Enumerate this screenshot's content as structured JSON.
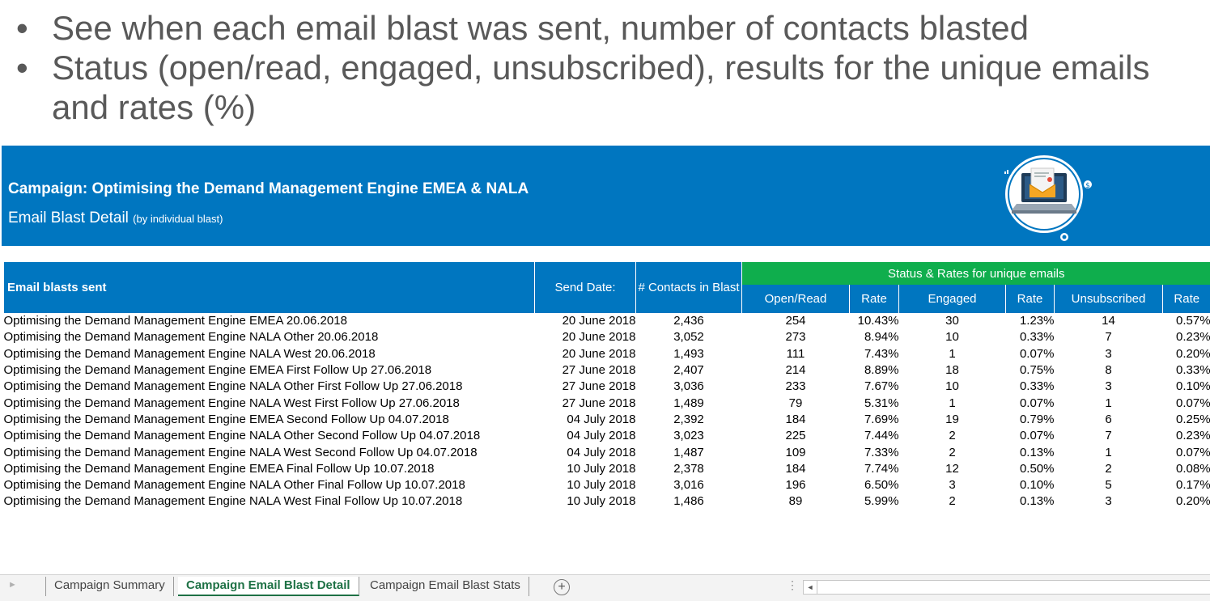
{
  "slide": {
    "bullets": [
      {
        "marker": "•",
        "text": "See when each email blast was sent, number of contacts blasted"
      },
      {
        "marker": "•",
        "text": "Status (open/read, engaged, unsubscribed), results for the unique emails and rates (%)"
      }
    ]
  },
  "banner": {
    "campaign": "Campaign: Optimising the Demand Management Engine EMEA & NALA",
    "subtitle": "Email Blast Detail",
    "subtitle_note": "(by individual blast)",
    "icon": "laptop-email-icon",
    "color": "#0076c0"
  },
  "table": {
    "header": {
      "name": "Email blasts sent",
      "send_date": "Send Date:",
      "contacts": "# Contacts in Blast",
      "group": "Status & Rates for unique emails",
      "open": "Open/Read",
      "open_rate": "Rate",
      "engaged": "Engaged",
      "engaged_rate": "Rate",
      "unsub": "Unsubscribed",
      "unsub_rate": "Rate"
    },
    "header_color": "#0076c0",
    "group_color": "#0fae4d",
    "rows": [
      {
        "name": "Optimising the Demand Management Engine EMEA 20.06.2018",
        "date": "20 June 2018",
        "contacts": "2,436",
        "open": "254",
        "open_rate": "10.43%",
        "engaged": "30",
        "engaged_rate": "1.23%",
        "unsub": "14",
        "unsub_rate": "0.57%"
      },
      {
        "name": "Optimising the Demand Management Engine NALA Other 20.06.2018",
        "date": "20 June 2018",
        "contacts": "3,052",
        "open": "273",
        "open_rate": "8.94%",
        "engaged": "10",
        "engaged_rate": "0.33%",
        "unsub": "7",
        "unsub_rate": "0.23%"
      },
      {
        "name": "Optimising the Demand Management Engine NALA West 20.06.2018",
        "date": "20 June 2018",
        "contacts": "1,493",
        "open": "111",
        "open_rate": "7.43%",
        "engaged": "1",
        "engaged_rate": "0.07%",
        "unsub": "3",
        "unsub_rate": "0.20%"
      },
      {
        "name": "Optimising the Demand Management Engine EMEA First Follow Up 27.06.2018",
        "date": "27 June 2018",
        "contacts": "2,407",
        "open": "214",
        "open_rate": "8.89%",
        "engaged": "18",
        "engaged_rate": "0.75%",
        "unsub": "8",
        "unsub_rate": "0.33%"
      },
      {
        "name": "Optimising the Demand Management Engine NALA Other First Follow Up 27.06.2018",
        "date": "27 June 2018",
        "contacts": "3,036",
        "open": "233",
        "open_rate": "7.67%",
        "engaged": "10",
        "engaged_rate": "0.33%",
        "unsub": "3",
        "unsub_rate": "0.10%"
      },
      {
        "name": "Optimising the Demand Management Engine NALA West First Follow Up 27.06.2018",
        "date": "27 June 2018",
        "contacts": "1,489",
        "open": "79",
        "open_rate": "5.31%",
        "engaged": "1",
        "engaged_rate": "0.07%",
        "unsub": "1",
        "unsub_rate": "0.07%"
      },
      {
        "name": "Optimising the Demand Management Engine EMEA Second Follow Up 04.07.2018",
        "date": "04 July 2018",
        "contacts": "2,392",
        "open": "184",
        "open_rate": "7.69%",
        "engaged": "19",
        "engaged_rate": "0.79%",
        "unsub": "6",
        "unsub_rate": "0.25%"
      },
      {
        "name": "Optimising the Demand Management Engine NALA Other Second Follow Up 04.07.2018",
        "date": "04 July 2018",
        "contacts": "3,023",
        "open": "225",
        "open_rate": "7.44%",
        "engaged": "2",
        "engaged_rate": "0.07%",
        "unsub": "7",
        "unsub_rate": "0.23%"
      },
      {
        "name": "Optimising the Demand Management Engine NALA West Second Follow Up 04.07.2018",
        "date": "04 July 2018",
        "contacts": "1,487",
        "open": "109",
        "open_rate": "7.33%",
        "engaged": "2",
        "engaged_rate": "0.13%",
        "unsub": "1",
        "unsub_rate": "0.07%"
      },
      {
        "name": "Optimising the Demand Management Engine EMEA Final Follow Up 10.07.2018",
        "date": "10 July 2018",
        "contacts": "2,378",
        "open": "184",
        "open_rate": "7.74%",
        "engaged": "12",
        "engaged_rate": "0.50%",
        "unsub": "2",
        "unsub_rate": "0.08%"
      },
      {
        "name": "Optimising the Demand Management Engine NALA Other Final Follow Up 10.07.2018",
        "date": "10 July 2018",
        "contacts": "3,016",
        "open": "196",
        "open_rate": "6.50%",
        "engaged": "3",
        "engaged_rate": "0.10%",
        "unsub": "5",
        "unsub_rate": "0.17%"
      },
      {
        "name": "Optimising the Demand Management Engine NALA West Final Follow Up 10.07.2018",
        "date": "10 July 2018",
        "contacts": "1,486",
        "open": "89",
        "open_rate": "5.99%",
        "engaged": "2",
        "engaged_rate": "0.13%",
        "unsub": "3",
        "unsub_rate": "0.20%"
      }
    ]
  },
  "sheet_tabs": {
    "nav_icon": "tab-scroll-arrow-icon",
    "tabs": [
      {
        "label": "Campaign Summary",
        "active": false
      },
      {
        "label": "Campaign Email Blast Detail",
        "active": true
      },
      {
        "label": "Campaign Email Blast Stats",
        "active": false
      }
    ],
    "add_icon": "plus-icon",
    "add_label": "+",
    "active_color": "#1e7145"
  }
}
